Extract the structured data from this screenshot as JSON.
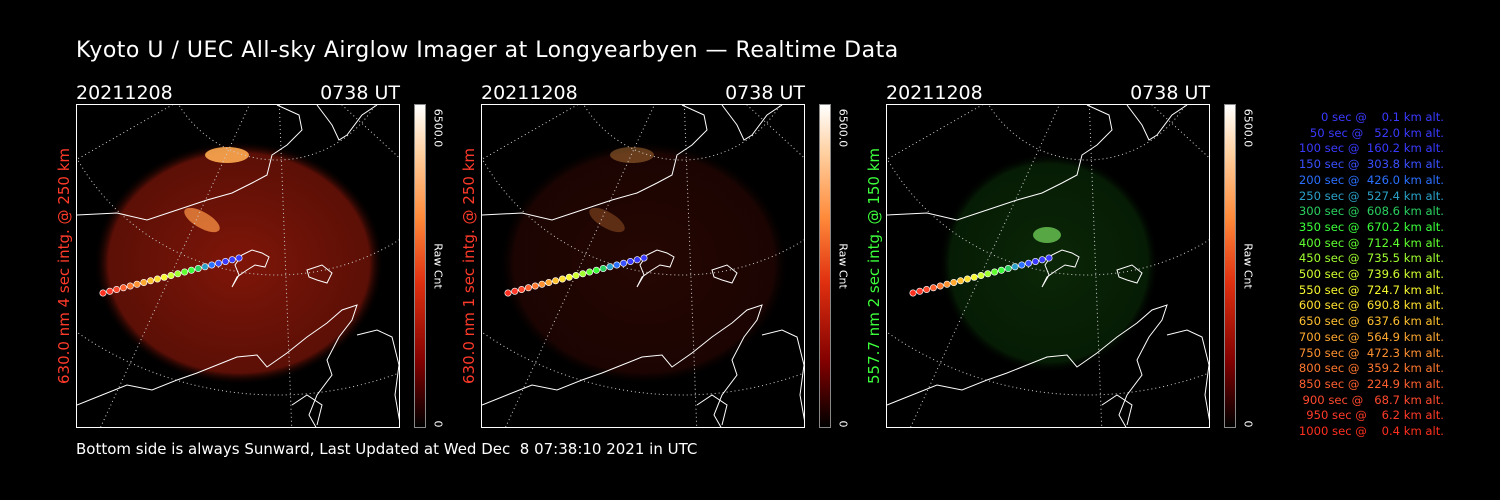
{
  "title": "Kyoto U / UEC All-sky Airglow Imager at Longyearbyen — Realtime Data",
  "panels": [
    {
      "date": "20211208",
      "time": "0738 UT",
      "side_label": "630.0 nm 4 sec intg. @ 250 km",
      "side_color": "#ff3a2a",
      "colorbar_max": "6500.0",
      "colorbar_min": "0",
      "colorbar_unit": "Raw Cnt",
      "glow": "red",
      "glow_strength": 0.85
    },
    {
      "date": "20211208",
      "time": "0738 UT",
      "side_label": "630.0 nm 1 sec intg. @ 250 km",
      "side_color": "#ff3a2a",
      "colorbar_max": "6500.0",
      "colorbar_min": "0",
      "colorbar_unit": "Raw Cnt",
      "glow": "red",
      "glow_strength": 0.25
    },
    {
      "date": "20211208",
      "time": "0738 UT",
      "side_label": "557.7 nm 2 sec intg. @ 150 km",
      "side_color": "#3cff3c",
      "colorbar_max": "6500.0",
      "colorbar_min": "0",
      "colorbar_unit": "Raw Cnt",
      "glow": "green",
      "glow_strength": 0.35
    }
  ],
  "footer": "Bottom side is always Sunward, Last Updated at Wed Dec  8 07:38:10 2021 in UTC",
  "legend": [
    {
      "text": "0 sec @    0.1 km alt.",
      "color": "#3a3aff"
    },
    {
      "text": "50 sec @   52.0 km alt.",
      "color": "#3a3aff"
    },
    {
      "text": "100 sec @  160.2 km alt.",
      "color": "#3a3aff"
    },
    {
      "text": "150 sec @  303.8 km alt.",
      "color": "#3a50ff"
    },
    {
      "text": "200 sec @  426.0 km alt.",
      "color": "#2a70ff"
    },
    {
      "text": "250 sec @  527.4 km alt.",
      "color": "#2aa0c8"
    },
    {
      "text": "300 sec @  608.6 km alt.",
      "color": "#2ad060"
    },
    {
      "text": "350 sec @  670.2 km alt.",
      "color": "#3aff3a"
    },
    {
      "text": "400 sec @  712.4 km alt.",
      "color": "#60ff30"
    },
    {
      "text": "450 sec @  735.5 km alt.",
      "color": "#a0ff30"
    },
    {
      "text": "500 sec @  739.6 km alt.",
      "color": "#d0ff30"
    },
    {
      "text": "550 sec @  724.7 km alt.",
      "color": "#f8f830"
    },
    {
      "text": "600 sec @  690.8 km alt.",
      "color": "#ffe030"
    },
    {
      "text": "650 sec @  637.6 km alt.",
      "color": "#ffc030"
    },
    {
      "text": "700 sec @  564.9 km alt.",
      "color": "#ffa830"
    },
    {
      "text": "750 sec @  472.3 km alt.",
      "color": "#ff9030"
    },
    {
      "text": "800 sec @  359.2 km alt.",
      "color": "#ff7830"
    },
    {
      "text": "850 sec @  224.9 km alt.",
      "color": "#ff6030"
    },
    {
      "text": "900 sec @   68.7 km alt.",
      "color": "#ff4a30"
    },
    {
      "text": "950 sec @    6.2 km alt.",
      "color": "#ff3a2a"
    },
    {
      "text": "1000 sec @    0.4 km alt.",
      "color": "#ff3020"
    }
  ]
}
